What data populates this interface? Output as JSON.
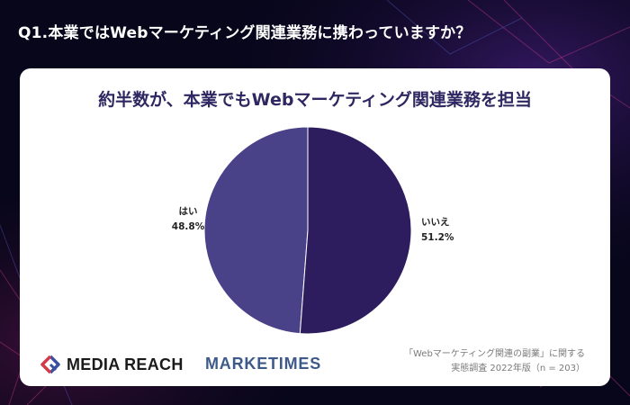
{
  "question": "Q1.本業ではWebマーケティング関連業務に携わっていますか？",
  "colors": {
    "yes": "#4a4289",
    "no": "#2d1d5e",
    "headline": "#2e2761",
    "logo_marketimes": "#3d5a8a",
    "logo_mark_red": "#d23a4b",
    "logo_mark_blue": "#3b4fa0"
  },
  "chart_data": {
    "type": "pie",
    "title": "約半数が、本業でもWebマーケティング関連業務を担当",
    "slices": [
      {
        "label": "はい",
        "value": 48.8,
        "display": "48.8%"
      },
      {
        "label": "いいえ",
        "value": 51.2,
        "display": "51.2%"
      }
    ]
  },
  "logos": {
    "media_reach": "MEDIA REACH",
    "marketimes": "MARKETIMES"
  },
  "source": {
    "line1": "「Webマーケティング関連の副業」に関する",
    "line2": "実態調査 2022年版（n = 203）"
  }
}
